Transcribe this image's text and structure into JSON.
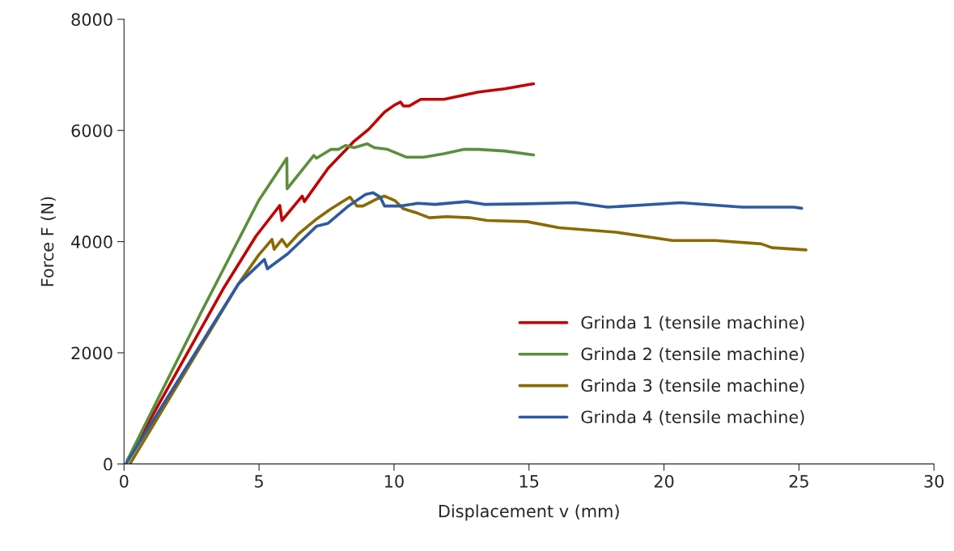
{
  "chart_data": {
    "type": "line",
    "xlabel": "Displacement v (mm)",
    "ylabel": "Force F (N)",
    "xlim": [
      0,
      30
    ],
    "ylim": [
      0,
      8000
    ],
    "xticks": [
      0,
      5,
      10,
      15,
      20,
      25,
      30
    ],
    "yticks": [
      0,
      2000,
      4000,
      6000,
      8000
    ],
    "grid": false,
    "legend": "lower right",
    "marker": "none",
    "line_style": "solid",
    "series": [
      {
        "name": "Grinda 1 (tensile machine)",
        "color": "#c00000",
        "x": [
          0.12,
          3.71,
          4.89,
          5.77,
          5.85,
          6.6,
          6.68,
          7.56,
          8.53,
          9.06,
          9.65,
          10.03,
          10.24,
          10.35,
          10.56,
          10.99,
          11.85,
          13.13,
          14.1,
          15.17
        ],
        "values": [
          60,
          3180,
          4100,
          4650,
          4380,
          4820,
          4720,
          5320,
          5810,
          6020,
          6330,
          6460,
          6510,
          6440,
          6440,
          6560,
          6560,
          6690,
          6750,
          6840
        ]
      },
      {
        "name": "Grinda 2 (tensile machine)",
        "color": "#5b8f3c",
        "x": [
          0.12,
          2.85,
          4.99,
          6.03,
          6.04,
          7.03,
          7.13,
          7.67,
          7.94,
          8.2,
          8.53,
          9.0,
          9.28,
          9.76,
          10.45,
          11.1,
          11.85,
          12.6,
          13.13,
          14.1,
          15.17
        ],
        "values": [
          65,
          2720,
          4740,
          5500,
          4950,
          5550,
          5500,
          5660,
          5660,
          5730,
          5690,
          5760,
          5690,
          5660,
          5520,
          5520,
          5580,
          5660,
          5660,
          5630,
          5560
        ]
      },
      {
        "name": "Grinda 3 (tensile machine)",
        "color": "#8a6a00",
        "x": [
          0.23,
          4.24,
          4.99,
          5.48,
          5.56,
          5.85,
          6.03,
          6.49,
          7.14,
          7.67,
          8.26,
          8.37,
          8.47,
          8.63,
          8.85,
          9.38,
          9.65,
          10.03,
          10.35,
          10.88,
          11.31,
          11.95,
          12.81,
          13.45,
          14.92,
          16.12,
          18.22,
          20.32,
          21.9,
          23.6,
          24.0,
          25.26
        ],
        "values": [
          10,
          3240,
          3760,
          4040,
          3860,
          4040,
          3910,
          4150,
          4410,
          4590,
          4770,
          4800,
          4740,
          4640,
          4640,
          4770,
          4820,
          4740,
          4590,
          4510,
          4430,
          4450,
          4430,
          4380,
          4360,
          4250,
          4170,
          4020,
          4020,
          3960,
          3890,
          3850
        ]
      },
      {
        "name": "Grinda 4 (tensile machine)",
        "color": "#2e5aa0",
        "x": [
          0.07,
          4.24,
          5.2,
          5.31,
          6.06,
          7.14,
          7.56,
          8.31,
          8.95,
          9.22,
          9.49,
          9.65,
          10.24,
          10.88,
          11.52,
          12.7,
          13.34,
          14.92,
          16.72,
          17.92,
          20.62,
          22.9,
          24.8,
          25.1
        ],
        "values": [
          0,
          3240,
          3680,
          3510,
          3780,
          4280,
          4330,
          4640,
          4850,
          4880,
          4800,
          4640,
          4640,
          4690,
          4670,
          4720,
          4670,
          4680,
          4700,
          4620,
          4700,
          4620,
          4620,
          4600
        ]
      }
    ]
  }
}
